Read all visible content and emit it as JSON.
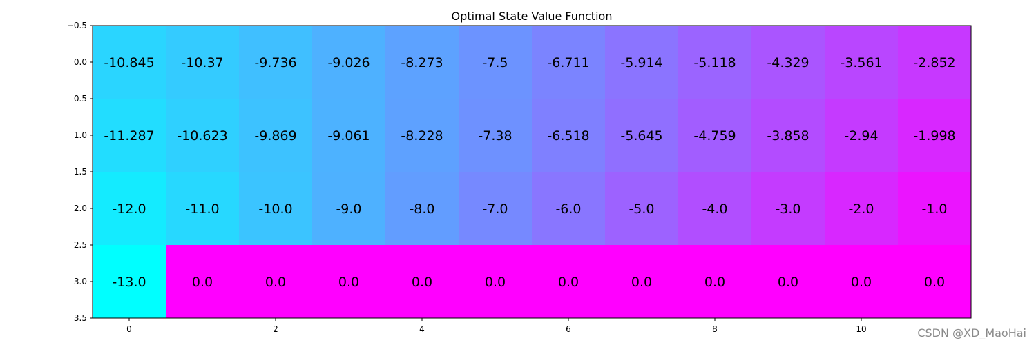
{
  "chart_data": {
    "type": "heatmap",
    "title": "Optimal State Value Function",
    "colormap": "cool",
    "color_min": -13.0,
    "color_max": 0.0,
    "rows": 4,
    "cols": 12,
    "values": [
      [
        -10.845,
        -10.37,
        -9.736,
        -9.026,
        -8.273,
        -7.5,
        -6.711,
        -5.914,
        -5.118,
        -4.329,
        -3.561,
        -2.852
      ],
      [
        -11.287,
        -10.623,
        -9.869,
        -9.061,
        -8.228,
        -7.38,
        -6.518,
        -5.645,
        -4.759,
        -3.858,
        -2.94,
        -1.998
      ],
      [
        -12.0,
        -11.0,
        -10.0,
        -9.0,
        -8.0,
        -7.0,
        -6.0,
        -5.0,
        -4.0,
        -3.0,
        -2.0,
        -1.0
      ],
      [
        -13.0,
        0.0,
        0.0,
        0.0,
        0.0,
        0.0,
        0.0,
        0.0,
        0.0,
        0.0,
        0.0,
        0.0
      ]
    ],
    "cell_labels": [
      [
        "-10.845",
        "-10.37",
        "-9.736",
        "-9.026",
        "-8.273",
        "-7.5",
        "-6.711",
        "-5.914",
        "-5.118",
        "-4.329",
        "-3.561",
        "-2.852"
      ],
      [
        "-11.287",
        "-10.623",
        "-9.869",
        "-9.061",
        "-8.228",
        "-7.38",
        "-6.518",
        "-5.645",
        "-4.759",
        "-3.858",
        "-2.94",
        "-1.998"
      ],
      [
        "-12.0",
        "-11.0",
        "-10.0",
        "-9.0",
        "-8.0",
        "-7.0",
        "-6.0",
        "-5.0",
        "-4.0",
        "-3.0",
        "-2.0",
        "-1.0"
      ],
      [
        "-13.0",
        "0.0",
        "0.0",
        "0.0",
        "0.0",
        "0.0",
        "0.0",
        "0.0",
        "0.0",
        "0.0",
        "0.0",
        "0.0"
      ]
    ],
    "xlim": [
      -0.5,
      11.5
    ],
    "ylim": [
      3.5,
      -0.5
    ],
    "x_ticks": [
      0,
      2,
      4,
      6,
      8,
      10
    ],
    "x_tick_labels": [
      "0",
      "2",
      "4",
      "6",
      "8",
      "10"
    ],
    "y_ticks": [
      -0.5,
      0.0,
      0.5,
      1.0,
      1.5,
      2.0,
      2.5,
      3.0,
      3.5
    ],
    "y_tick_labels": [
      "−0.5",
      "0.0",
      "0.5",
      "1.0",
      "1.5",
      "2.0",
      "2.5",
      "3.0",
      "3.5"
    ],
    "xlabel": "",
    "ylabel": "",
    "grid": false
  },
  "watermark": "CSDN @XD_MaoHai"
}
